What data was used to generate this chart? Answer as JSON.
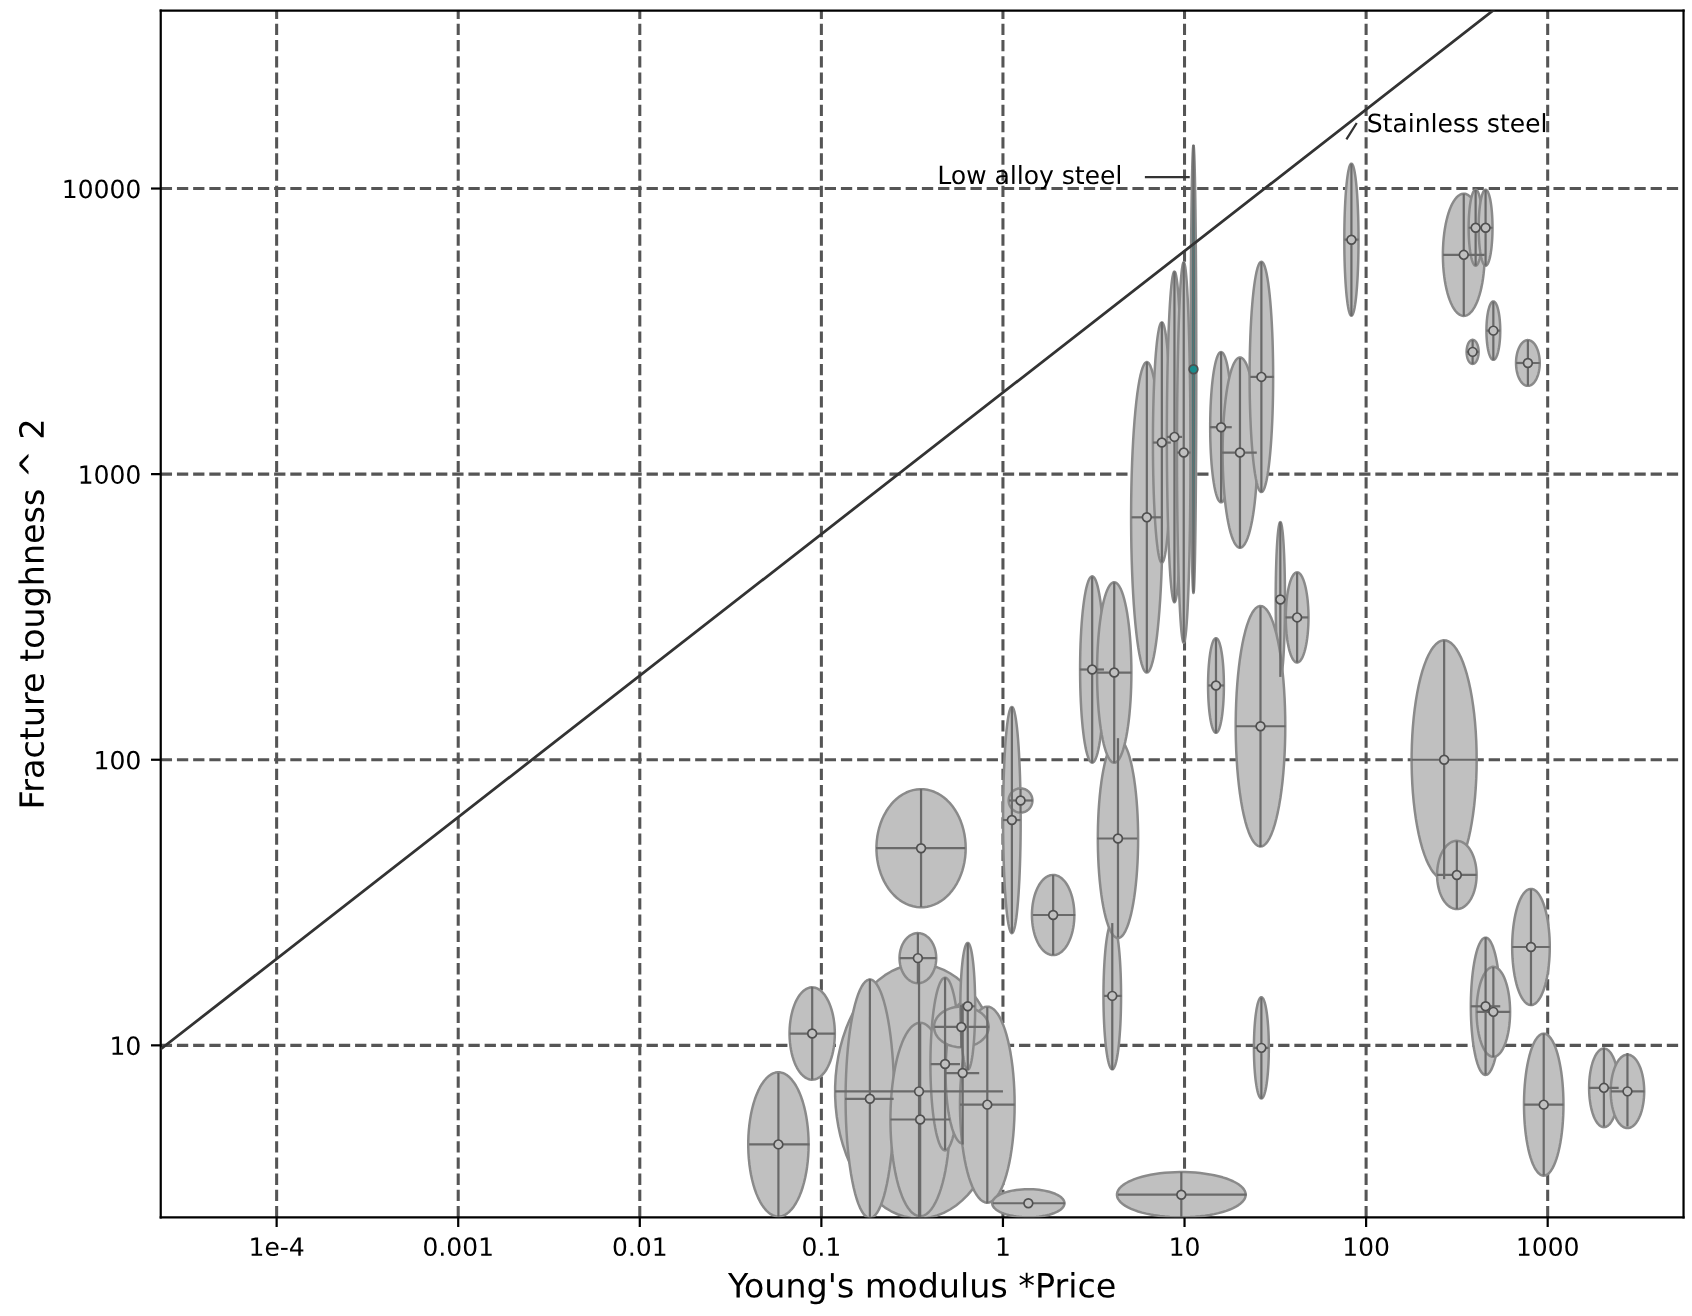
{
  "chart_data": {
    "type": "scatter",
    "xlabel": "Young's modulus *Price",
    "ylabel": "Fracture toughness ^ 2",
    "log": "xy",
    "grid": true,
    "xlim": [
      2.3e-05,
      5600
    ],
    "ylim": [
      2.5,
      42000
    ],
    "xticks": [
      {
        "value": 0.0001,
        "label": "1e-4"
      },
      0.001,
      0.01,
      0.1,
      1,
      10,
      100,
      1000
    ],
    "yticks": [
      10,
      100,
      1000,
      10000
    ],
    "annotations": [
      "Low alloy steel",
      "Stainless steel"
    ],
    "series": [
      {
        "color": "#c0c0c0",
        "marker": "circle",
        "x": [
          0.058,
          0.089,
          0.345,
          0.185,
          0.35,
          0.48,
          0.6,
          0.82,
          0.59,
          0.64,
          0.354,
          0.34,
          1.12,
          1.25,
          1.89,
          4.0,
          4.3,
          3.1,
          4.1,
          6.2,
          7.5,
          8.8,
          9.9,
          15.9,
          20.2,
          26.5,
          33.7,
          41.7,
          26.2,
          14.9,
          26.5,
          9.6,
          1.38,
          83,
          345,
          401,
          455,
          502,
          386,
          778,
          269,
          316,
          455,
          502,
          809,
          951,
          2040,
          2750
        ],
        "values": [
          4.5,
          11.0,
          6.9,
          6.5,
          5.5,
          8.6,
          8.0,
          6.2,
          11.6,
          13.7,
          49,
          20.2,
          61.5,
          72,
          28.6,
          14.9,
          53,
          207,
          202,
          706,
          1290,
          1350,
          1190,
          1460,
          1190,
          2190,
          364,
          315,
          131,
          182,
          9.8,
          3.0,
          2.8,
          6620,
          5860,
          7290,
          7290,
          3180,
          2680,
          2450,
          100,
          39.5,
          13.7,
          13.1,
          22.1,
          6.2,
          7.1,
          6.9
        ],
        "xerrors": [
          [
            0.04,
            0.086
          ],
          [
            0.067,
            0.119
          ],
          [
            0.119,
            1.0
          ],
          [
            0.135,
            0.25
          ],
          [
            0.24,
            0.51
          ],
          [
            0.4,
            0.58
          ],
          [
            0.48,
            0.74
          ],
          [
            0.58,
            1.16
          ],
          [
            0.42,
            0.84
          ],
          [
            0.58,
            0.7
          ],
          [
            0.2,
            0.62
          ],
          [
            0.27,
            0.43
          ],
          [
            1.0,
            1.25
          ],
          [
            1.08,
            1.46
          ],
          [
            1.46,
            2.5
          ],
          [
            3.6,
            4.5
          ],
          [
            3.3,
            5.5
          ],
          [
            2.65,
            3.6
          ],
          [
            3.3,
            5.1
          ],
          [
            5.1,
            7.6
          ],
          [
            6.7,
            8.4
          ],
          [
            8.0,
            9.7
          ],
          [
            9.1,
            10.8
          ],
          [
            13.8,
            18.2
          ],
          [
            16.1,
            25
          ],
          [
            23,
            31
          ],
          [
            32,
            36
          ],
          [
            36,
            48
          ],
          [
            19.2,
            36
          ],
          [
            13.5,
            16.5
          ],
          [
            24,
            29
          ],
          [
            4.3,
            22
          ],
          [
            0.88,
            2.2
          ],
          [
            76,
            91
          ],
          [
            265,
            450
          ],
          [
            367,
            438
          ],
          [
            417,
            497
          ],
          [
            460,
            548
          ],
          [
            358,
            417
          ],
          [
            670,
            905
          ],
          [
            178,
            406
          ],
          [
            246,
            406
          ],
          [
            377,
            548
          ],
          [
            406,
            621
          ],
          [
            637,
            1026
          ],
          [
            741,
            1222
          ],
          [
            1690,
            2460
          ],
          [
            2230,
            3410
          ]
        ],
        "errors": [
          [
            2.5,
            8.0
          ],
          [
            7.6,
            16.0
          ],
          [
            2.5,
            19.4
          ],
          [
            2.5,
            17.1
          ],
          [
            2.5,
            11.9
          ],
          [
            4.3,
            17.3
          ],
          [
            4.5,
            14.0
          ],
          [
            2.8,
            13.6
          ],
          [
            9.8,
            13.6
          ],
          [
            8.2,
            22.8
          ],
          [
            30.5,
            79
          ],
          [
            16.5,
            24.7
          ],
          [
            24.7,
            153
          ],
          [
            65,
            79
          ],
          [
            20.7,
            39.5
          ],
          [
            8.2,
            26.8
          ],
          [
            23.9,
            119
          ],
          [
            97.5,
            438
          ],
          [
            97.5,
            418
          ],
          [
            202,
            2470
          ],
          [
            491,
            3410
          ],
          [
            356,
            5120
          ],
          [
            258,
            5540
          ],
          [
            798,
            2680
          ],
          [
            550,
            2550
          ],
          [
            865,
            5540
          ],
          [
            195,
            679
          ],
          [
            219,
            453
          ],
          [
            49.5,
            344
          ],
          [
            124,
            266
          ],
          [
            6.5,
            14.7
          ],
          [
            2.5,
            3.6
          ],
          null,
          [
            3580,
            12200
          ],
          [
            3580,
            9590
          ],
          [
            5370,
            9910
          ],
          [
            5370,
            9910
          ],
          [
            2510,
            4020
          ],
          [
            2430,
            2950
          ],
          [
            2040,
            2950
          ],
          [
            38.2,
            262
          ],
          [
            30,
            52
          ],
          [
            7.9,
            23.9
          ],
          [
            9.1,
            18.8
          ],
          [
            13.8,
            35.2
          ],
          [
            3.5,
            11.0
          ],
          [
            5.2,
            9.8
          ],
          [
            5.2,
            9.4
          ]
        ]
      },
      {
        "color": "#1a8c8c",
        "marker": "circle",
        "x": [
          11.2
        ],
        "values": [
          2330
        ],
        "xerrors": [
          [
            10.8,
            11.6
          ]
        ],
        "errors": [
          [
            385,
            14200
          ]
        ]
      },
      {
        "type": "line",
        "line_style": "solid",
        "color": "#333333",
        "x": [
          2.3e-05,
          500
        ],
        "values": [
          9.7,
          42000
        ]
      }
    ]
  }
}
